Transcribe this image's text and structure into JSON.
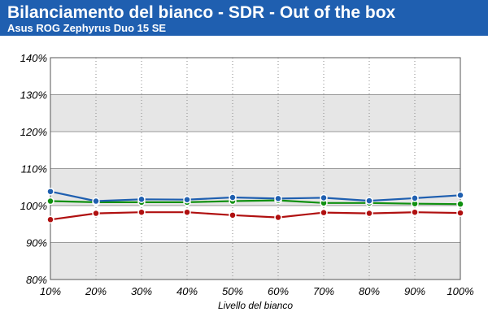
{
  "header": {
    "title": "Bilanciamento del bianco - SDR - Out of the box",
    "subtitle": "Asus ROG Zephyrus Duo 15 SE"
  },
  "colors": {
    "header_bg": "#1f5fb0",
    "band": "#e6e6e6",
    "red": "#b01010",
    "green": "#109010",
    "blue": "#1f5fb0"
  },
  "chart_data": {
    "type": "line",
    "title": "Bilanciamento del bianco - SDR - Out of the box",
    "subtitle": "Asus ROG Zephyrus Duo 15 SE",
    "xlabel": "Livello del bianco",
    "ylabel": "",
    "categories": [
      "10%",
      "20%",
      "30%",
      "40%",
      "50%",
      "60%",
      "70%",
      "80%",
      "90%",
      "100%"
    ],
    "yticks": [
      "80%",
      "90%",
      "100%",
      "110%",
      "120%",
      "130%",
      "140%"
    ],
    "ylim": [
      80,
      140
    ],
    "grid": true,
    "legend": "none",
    "series": [
      {
        "color": "#b01010",
        "values": [
          96.2,
          97.9,
          98.2,
          98.2,
          97.4,
          96.8,
          98.1,
          97.9,
          98.2,
          98.0
        ]
      },
      {
        "color": "#109010",
        "values": [
          101.2,
          100.9,
          100.9,
          100.9,
          101.2,
          101.4,
          100.7,
          100.7,
          100.5,
          100.4
        ]
      },
      {
        "color": "#1f5fb0",
        "values": [
          103.8,
          101.2,
          101.7,
          101.6,
          102.2,
          101.9,
          102.1,
          101.3,
          102.0,
          102.8
        ]
      }
    ]
  }
}
